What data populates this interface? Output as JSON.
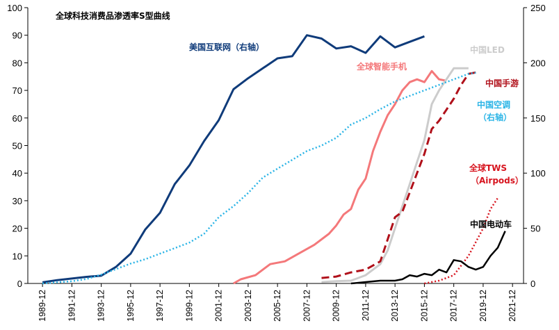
{
  "chart_data": {
    "type": "line",
    "title": "全球科技消费品渗透率S型曲线",
    "x_ticks": [
      "1989-12",
      "1991-12",
      "1993-12",
      "1995-12",
      "1997-12",
      "1999-12",
      "2001-12",
      "2003-12",
      "2005-12",
      "2007-12",
      "2009-12",
      "2011-12",
      "2013-12",
      "2015-12",
      "2017-12",
      "2019-12",
      "2021-12"
    ],
    "y_left": {
      "min": 0,
      "max": 100,
      "ticks": [
        0,
        10,
        20,
        30,
        40,
        50,
        60,
        70,
        80,
        90,
        100
      ]
    },
    "y_right": {
      "min": 0,
      "max": 250,
      "ticks": [
        0,
        50,
        100,
        150,
        200,
        250
      ]
    },
    "grid": false,
    "series": [
      {
        "name": "美国互联网（右轴）",
        "axis": "right",
        "color": "#0f3b7a",
        "dash": "solid",
        "width": 3,
        "label_lines": [
          "美国互联网（右轴）"
        ],
        "points": [
          [
            1990.0,
            1
          ],
          [
            1991.0,
            3
          ],
          [
            1992.0,
            4.5
          ],
          [
            1993.0,
            6
          ],
          [
            1994.0,
            7
          ],
          [
            1995.0,
            15
          ],
          [
            1996.0,
            27
          ],
          [
            1997.0,
            49
          ],
          [
            1998.0,
            64
          ],
          [
            1999.0,
            90
          ],
          [
            2000.0,
            107
          ],
          [
            2001.0,
            129
          ],
          [
            2002.0,
            148
          ],
          [
            2003.0,
            176
          ],
          [
            2004.0,
            186
          ],
          [
            2005.0,
            195
          ],
          [
            2006.0,
            204
          ],
          [
            2007.0,
            206
          ],
          [
            2008.0,
            225
          ],
          [
            2009.0,
            222
          ],
          [
            2010.0,
            213
          ],
          [
            2011.0,
            215
          ],
          [
            2012.0,
            209
          ],
          [
            2013.0,
            224
          ],
          [
            2014.0,
            214
          ],
          [
            2015.0,
            219
          ],
          [
            2016.0,
            224
          ]
        ]
      },
      {
        "name": "全球智能手机",
        "axis": "left",
        "color": "#f4787a",
        "dash": "solid",
        "width": 3,
        "label_lines": [
          "全球智能手机"
        ],
        "points": [
          [
            2003.0,
            0
          ],
          [
            2003.5,
            1.5
          ],
          [
            2004.5,
            3
          ],
          [
            2005.5,
            7
          ],
          [
            2006.5,
            8
          ],
          [
            2007.5,
            11
          ],
          [
            2008.5,
            14
          ],
          [
            2009.5,
            18
          ],
          [
            2010.0,
            21
          ],
          [
            2010.5,
            25
          ],
          [
            2011.0,
            27
          ],
          [
            2011.5,
            34
          ],
          [
            2012.0,
            38
          ],
          [
            2012.5,
            48
          ],
          [
            2013.0,
            55
          ],
          [
            2013.5,
            61
          ],
          [
            2014.0,
            65
          ],
          [
            2014.5,
            70
          ],
          [
            2015.0,
            73
          ],
          [
            2015.5,
            74
          ],
          [
            2016.0,
            73
          ],
          [
            2016.5,
            77
          ],
          [
            2017.0,
            74
          ],
          [
            2017.5,
            73.5
          ]
        ]
      },
      {
        "name": "中国LED",
        "axis": "left",
        "color": "#cccccc",
        "dash": "solid",
        "width": 3,
        "label_lines": [
          "中国LED"
        ],
        "points": [
          [
            2009.0,
            0.5
          ],
          [
            2010.0,
            0.8
          ],
          [
            2011.0,
            1
          ],
          [
            2012.0,
            3
          ],
          [
            2013.0,
            7
          ],
          [
            2013.5,
            12
          ],
          [
            2014.0,
            20
          ],
          [
            2014.5,
            28
          ],
          [
            2015.0,
            36
          ],
          [
            2015.5,
            44
          ],
          [
            2016.0,
            52
          ],
          [
            2016.5,
            65
          ],
          [
            2017.0,
            70
          ],
          [
            2017.5,
            74
          ],
          [
            2018.0,
            78
          ],
          [
            2018.5,
            78
          ],
          [
            2019.0,
            78
          ]
        ]
      },
      {
        "name": "中国手游",
        "axis": "left",
        "color": "#b0101a",
        "dash": "dashed",
        "width": 3,
        "label_lines": [
          "中国手游"
        ],
        "points": [
          [
            2009.0,
            2
          ],
          [
            2010.0,
            2.5
          ],
          [
            2011.0,
            4
          ],
          [
            2012.0,
            5
          ],
          [
            2013.0,
            8
          ],
          [
            2013.5,
            16
          ],
          [
            2014.0,
            24
          ],
          [
            2014.5,
            26
          ],
          [
            2015.0,
            33
          ],
          [
            2015.5,
            40
          ],
          [
            2016.0,
            47
          ],
          [
            2016.5,
            56
          ],
          [
            2017.0,
            59
          ],
          [
            2017.5,
            63
          ],
          [
            2018.0,
            67
          ],
          [
            2018.5,
            72
          ],
          [
            2019.0,
            76
          ],
          [
            2019.5,
            76.5
          ]
        ]
      },
      {
        "name": "中国空调（右轴）",
        "axis": "right",
        "color": "#2ab4e6",
        "dash": "dotted",
        "width": 2.5,
        "label_lines": [
          "中国空调",
          "（右轴）"
        ],
        "points": [
          [
            1990.0,
            0
          ],
          [
            1991.0,
            1
          ],
          [
            1992.0,
            2
          ],
          [
            1993.0,
            4
          ],
          [
            1994.0,
            8
          ],
          [
            1995.0,
            13
          ],
          [
            1996.0,
            18
          ],
          [
            1997.0,
            22
          ],
          [
            1998.0,
            27
          ],
          [
            1999.0,
            32
          ],
          [
            2000.0,
            37
          ],
          [
            2001.0,
            45
          ],
          [
            2002.0,
            60
          ],
          [
            2003.0,
            70
          ],
          [
            2004.0,
            82
          ],
          [
            2005.0,
            96
          ],
          [
            2006.0,
            104
          ],
          [
            2007.0,
            112
          ],
          [
            2008.0,
            120
          ],
          [
            2009.0,
            125
          ],
          [
            2010.0,
            132
          ],
          [
            2011.0,
            144
          ],
          [
            2012.0,
            150
          ],
          [
            2013.0,
            158
          ],
          [
            2014.0,
            165
          ],
          [
            2015.0,
            170
          ],
          [
            2016.0,
            175
          ],
          [
            2017.0,
            180
          ],
          [
            2018.0,
            185
          ],
          [
            2019.0,
            190
          ],
          [
            2019.5,
            191
          ]
        ]
      },
      {
        "name": "全球TWS（Airpods）",
        "axis": "left",
        "color": "#d7141e",
        "dash": "dotted",
        "width": 2.5,
        "label_lines": [
          "全球TWS",
          "（Airpods）"
        ],
        "points": [
          [
            2016.0,
            0
          ],
          [
            2017.0,
            1
          ],
          [
            2018.0,
            3
          ],
          [
            2019.0,
            10
          ],
          [
            2020.0,
            20
          ],
          [
            2020.5,
            27
          ],
          [
            2021.0,
            31
          ]
        ]
      },
      {
        "name": "中国电动车",
        "axis": "left",
        "color": "#000000",
        "dash": "solid",
        "width": 2.5,
        "label_lines": [
          "中国电动车"
        ],
        "points": [
          [
            2011.0,
            0
          ],
          [
            2012.0,
            0.5
          ],
          [
            2013.0,
            1
          ],
          [
            2014.0,
            1
          ],
          [
            2014.5,
            1.5
          ],
          [
            2015.0,
            3
          ],
          [
            2015.5,
            2.5
          ],
          [
            2016.0,
            3.5
          ],
          [
            2016.5,
            3
          ],
          [
            2017.0,
            5
          ],
          [
            2017.5,
            4
          ],
          [
            2018.0,
            8.5
          ],
          [
            2018.5,
            8
          ],
          [
            2019.0,
            6
          ],
          [
            2019.5,
            5
          ],
          [
            2020.0,
            6
          ],
          [
            2020.5,
            10
          ],
          [
            2021.0,
            13
          ],
          [
            2021.5,
            19
          ]
        ]
      }
    ]
  }
}
